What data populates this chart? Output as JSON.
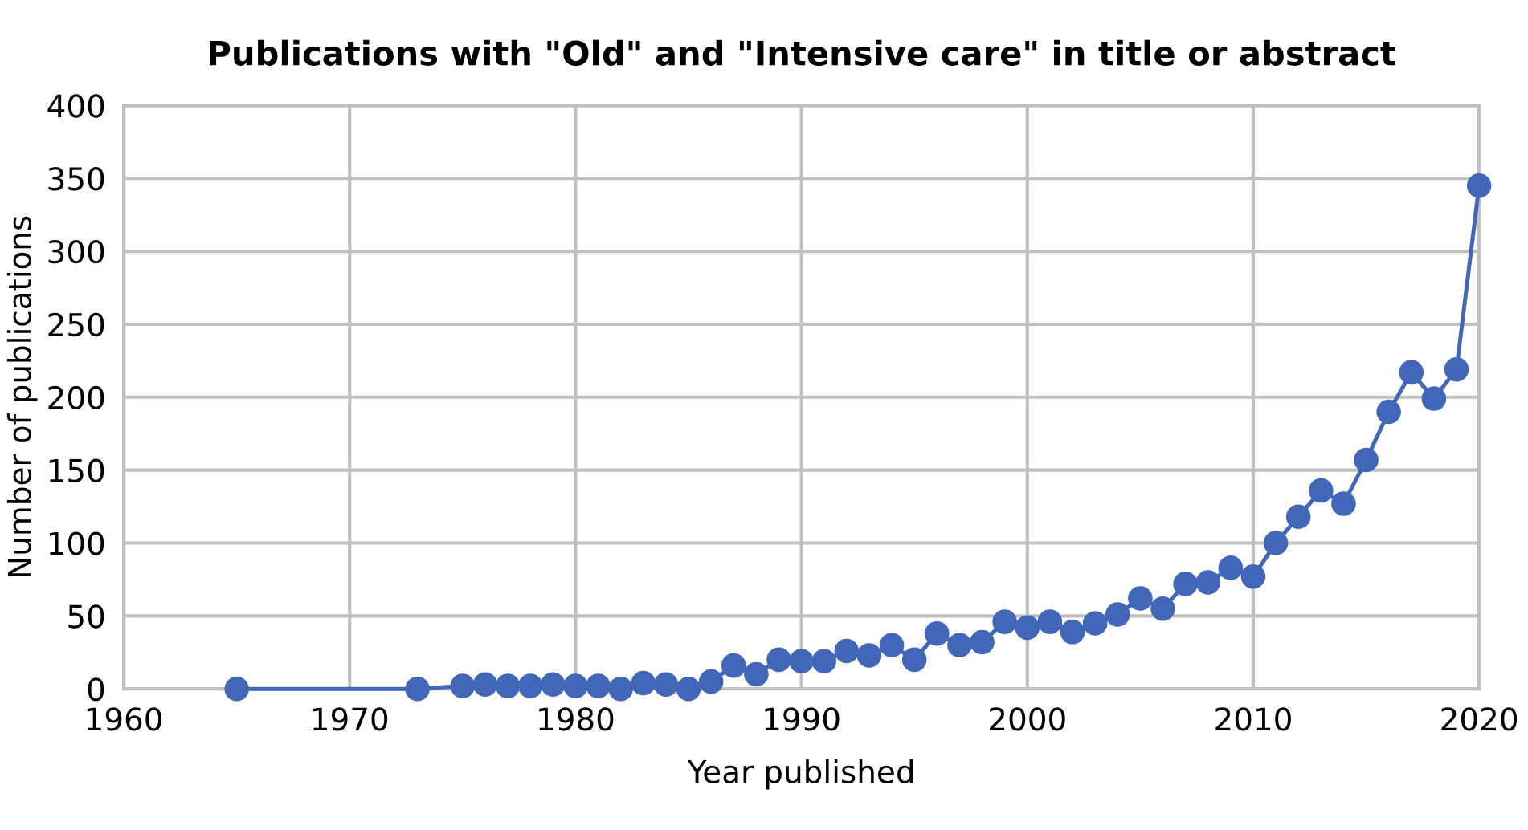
{
  "chart_data": {
    "type": "line",
    "title": "Publications with \"Old\" and \"Intensive care\" in title or abstract",
    "xlabel": "Year published",
    "ylabel": "Number of publications",
    "x": [
      1965,
      1973,
      1975,
      1976,
      1977,
      1978,
      1979,
      1980,
      1981,
      1982,
      1983,
      1984,
      1985,
      1986,
      1987,
      1988,
      1989,
      1990,
      1991,
      1992,
      1993,
      1994,
      1995,
      1996,
      1997,
      1998,
      1999,
      2000,
      2001,
      2002,
      2003,
      2004,
      2005,
      2006,
      2007,
      2008,
      2009,
      2010,
      2011,
      2012,
      2013,
      2014,
      2015,
      2016,
      2017,
      2018,
      2019,
      2020
    ],
    "series": [
      {
        "color": "#4266b8",
        "values": [
          0,
          0,
          2,
          3,
          2,
          2,
          3,
          2,
          2,
          0,
          4,
          3,
          0,
          5,
          16,
          10,
          20,
          19,
          19,
          26,
          23,
          30,
          20,
          38,
          30,
          32,
          46,
          42,
          46,
          39,
          45,
          51,
          62,
          55,
          72,
          73,
          83,
          77,
          100,
          118,
          136,
          127,
          157,
          190,
          217,
          199,
          219,
          345
        ]
      }
    ],
    "xlim": [
      1960,
      2020
    ],
    "xticks": [
      1960,
      1970,
      1980,
      1990,
      2000,
      2010,
      2020
    ],
    "ylim": [
      0,
      400
    ],
    "yticks": [
      0,
      50,
      100,
      150,
      200,
      250,
      300,
      350,
      400
    ],
    "grid": true,
    "marker": "circle",
    "line_style": "solid"
  }
}
